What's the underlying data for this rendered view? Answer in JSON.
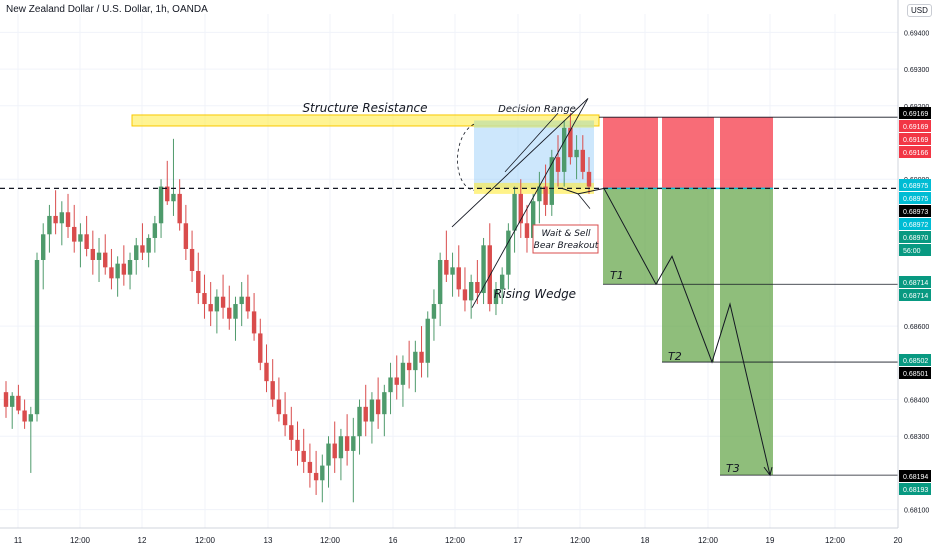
{
  "header": {
    "title": "New Zealand Dollar / U.S. Dollar, 1h, OANDA",
    "currency_button": "USD"
  },
  "chart_data": {
    "type": "candlestick",
    "symbol": "NZDUSD",
    "timeframe": "1h",
    "ylim": [
      0.6805,
      0.6945
    ],
    "y_ticks": [
      "0.69400",
      "0.69300",
      "0.69200",
      "0.69000",
      "0.68600",
      "0.68400",
      "0.68300",
      "0.68100"
    ],
    "x_ticks": [
      "11",
      "12:00",
      "12",
      "12:00",
      "13",
      "12:00",
      "16",
      "12:00",
      "17",
      "12:00",
      "18",
      "12:00",
      "19",
      "12:00",
      "20"
    ],
    "price_labels": [
      {
        "text": "0.69169",
        "color": "#000000"
      },
      {
        "text": "0.69169",
        "color": "#f23645"
      },
      {
        "text": "0.69169",
        "color": "#f23645"
      },
      {
        "text": "0.69166",
        "color": "#f23645"
      },
      {
        "text": "0.68975",
        "color": "#00bcd4"
      },
      {
        "text": "0.68975",
        "color": "#00bcd4"
      },
      {
        "text": "0.68973",
        "color": "#000000"
      },
      {
        "text": "0.68972",
        "color": "#00bcd4"
      },
      {
        "text": "0.68970",
        "color": "#089981"
      },
      {
        "text": "56:00",
        "color": "#089981"
      },
      {
        "text": "0.68714",
        "color": "#089981"
      },
      {
        "text": "0.68714",
        "color": "#089981"
      },
      {
        "text": "0.68502",
        "color": "#089981"
      },
      {
        "text": "0.68501",
        "color": "#000000"
      },
      {
        "text": "0.68194",
        "color": "#000000"
      },
      {
        "text": "0.68193",
        "color": "#089981"
      }
    ],
    "levels": {
      "entry": 0.68975,
      "stop": 0.69169,
      "t1": 0.68714,
      "t2": 0.68502,
      "t3": 0.68194,
      "structure_resistance": 0.6916
    },
    "annotations": {
      "structure_resistance": "Structure Resistance",
      "decision_range": "Decision Range",
      "rising_wedge": "Rising Wedge",
      "wait_sell": "Wait & Sell",
      "bear_breakout": "Bear Breakout",
      "t1": "T1",
      "t2": "T2",
      "t3": "T3"
    },
    "candles": [
      [
        0.6842,
        0.6845,
        0.6835,
        0.6838
      ],
      [
        0.6838,
        0.6842,
        0.6832,
        0.6841
      ],
      [
        0.6841,
        0.6844,
        0.6836,
        0.6837
      ],
      [
        0.6837,
        0.684,
        0.6832,
        0.6834
      ],
      [
        0.6834,
        0.6838,
        0.682,
        0.6836
      ],
      [
        0.6836,
        0.688,
        0.6834,
        0.6878
      ],
      [
        0.6878,
        0.6888,
        0.687,
        0.6885
      ],
      [
        0.6885,
        0.6893,
        0.688,
        0.689
      ],
      [
        0.689,
        0.6897,
        0.6885,
        0.6888
      ],
      [
        0.6888,
        0.6894,
        0.6882,
        0.6891
      ],
      [
        0.6891,
        0.6896,
        0.6884,
        0.6887
      ],
      [
        0.6887,
        0.6893,
        0.688,
        0.6883
      ],
      [
        0.6883,
        0.6888,
        0.6876,
        0.6885
      ],
      [
        0.6885,
        0.689,
        0.6879,
        0.6881
      ],
      [
        0.6881,
        0.6886,
        0.6874,
        0.6878
      ],
      [
        0.6878,
        0.6884,
        0.6872,
        0.688
      ],
      [
        0.688,
        0.6885,
        0.6874,
        0.6876
      ],
      [
        0.6876,
        0.6881,
        0.687,
        0.6873
      ],
      [
        0.6873,
        0.6879,
        0.6868,
        0.6877
      ],
      [
        0.6877,
        0.6882,
        0.6871,
        0.6874
      ],
      [
        0.6874,
        0.688,
        0.687,
        0.6878
      ],
      [
        0.6878,
        0.6884,
        0.6874,
        0.6882
      ],
      [
        0.6882,
        0.6888,
        0.6878,
        0.688
      ],
      [
        0.688,
        0.6885,
        0.6876,
        0.6884
      ],
      [
        0.6884,
        0.689,
        0.688,
        0.6888
      ],
      [
        0.6888,
        0.69,
        0.6884,
        0.6898
      ],
      [
        0.6898,
        0.6905,
        0.6893,
        0.6894
      ],
      [
        0.6894,
        0.6911,
        0.689,
        0.6896
      ],
      [
        0.6896,
        0.69,
        0.6886,
        0.6888
      ],
      [
        0.6888,
        0.6893,
        0.6878,
        0.6881
      ],
      [
        0.6881,
        0.6886,
        0.6872,
        0.6875
      ],
      [
        0.6875,
        0.688,
        0.6866,
        0.6869
      ],
      [
        0.6869,
        0.6874,
        0.6862,
        0.6866
      ],
      [
        0.6866,
        0.6872,
        0.686,
        0.6864
      ],
      [
        0.6864,
        0.687,
        0.6858,
        0.6868
      ],
      [
        0.6868,
        0.6874,
        0.6862,
        0.6865
      ],
      [
        0.6865,
        0.6871,
        0.6859,
        0.6862
      ],
      [
        0.6862,
        0.6868,
        0.6856,
        0.6866
      ],
      [
        0.6866,
        0.6872,
        0.686,
        0.6868
      ],
      [
        0.6868,
        0.6874,
        0.6862,
        0.6864
      ],
      [
        0.6864,
        0.6869,
        0.6856,
        0.6858
      ],
      [
        0.6858,
        0.6862,
        0.6848,
        0.685
      ],
      [
        0.685,
        0.6855,
        0.6842,
        0.6845
      ],
      [
        0.6845,
        0.6851,
        0.6838,
        0.684
      ],
      [
        0.684,
        0.6846,
        0.6834,
        0.6836
      ],
      [
        0.6836,
        0.6842,
        0.683,
        0.6833
      ],
      [
        0.6833,
        0.6838,
        0.6826,
        0.6829
      ],
      [
        0.6829,
        0.6834,
        0.6822,
        0.6826
      ],
      [
        0.6826,
        0.6832,
        0.682,
        0.6823
      ],
      [
        0.6823,
        0.6828,
        0.6816,
        0.682
      ],
      [
        0.682,
        0.6826,
        0.6814,
        0.6818
      ],
      [
        0.6818,
        0.6825,
        0.6812,
        0.6822
      ],
      [
        0.6822,
        0.683,
        0.6816,
        0.6828
      ],
      [
        0.6828,
        0.6834,
        0.682,
        0.6824
      ],
      [
        0.6824,
        0.6832,
        0.6818,
        0.683
      ],
      [
        0.683,
        0.6836,
        0.6822,
        0.6826
      ],
      [
        0.6826,
        0.6835,
        0.6812,
        0.683
      ],
      [
        0.683,
        0.684,
        0.6825,
        0.6838
      ],
      [
        0.6838,
        0.6844,
        0.683,
        0.6834
      ],
      [
        0.6834,
        0.6842,
        0.6828,
        0.684
      ],
      [
        0.684,
        0.6846,
        0.6832,
        0.6836
      ],
      [
        0.6836,
        0.6844,
        0.683,
        0.6842
      ],
      [
        0.6842,
        0.685,
        0.6836,
        0.6846
      ],
      [
        0.6846,
        0.6852,
        0.684,
        0.6844
      ],
      [
        0.6844,
        0.6852,
        0.6838,
        0.685
      ],
      [
        0.685,
        0.6856,
        0.6843,
        0.6848
      ],
      [
        0.6848,
        0.6856,
        0.6842,
        0.6853
      ],
      [
        0.6853,
        0.686,
        0.6846,
        0.685
      ],
      [
        0.685,
        0.6864,
        0.6846,
        0.6862
      ],
      [
        0.6862,
        0.687,
        0.6856,
        0.6866
      ],
      [
        0.6866,
        0.688,
        0.686,
        0.6878
      ],
      [
        0.6878,
        0.6886,
        0.6872,
        0.6874
      ],
      [
        0.6874,
        0.688,
        0.6868,
        0.6876
      ],
      [
        0.6876,
        0.6882,
        0.6868,
        0.687
      ],
      [
        0.687,
        0.6876,
        0.6864,
        0.6867
      ],
      [
        0.6867,
        0.6874,
        0.6862,
        0.6872
      ],
      [
        0.6872,
        0.6878,
        0.6866,
        0.6869
      ],
      [
        0.6869,
        0.6884,
        0.6866,
        0.6882
      ],
      [
        0.6882,
        0.6888,
        0.6864,
        0.6866
      ],
      [
        0.6866,
        0.6872,
        0.6863,
        0.687
      ],
      [
        0.687,
        0.6876,
        0.6866,
        0.6874
      ],
      [
        0.6874,
        0.6888,
        0.687,
        0.6886
      ],
      [
        0.6886,
        0.6898,
        0.688,
        0.6896
      ],
      [
        0.6896,
        0.69,
        0.6884,
        0.6888
      ],
      [
        0.6888,
        0.6893,
        0.688,
        0.6884
      ],
      [
        0.6884,
        0.6896,
        0.6882,
        0.6894
      ],
      [
        0.6894,
        0.6902,
        0.6888,
        0.6898
      ],
      [
        0.6898,
        0.6904,
        0.689,
        0.6893
      ],
      [
        0.6893,
        0.6908,
        0.689,
        0.6906
      ],
      [
        0.6906,
        0.6912,
        0.6898,
        0.6902
      ],
      [
        0.6902,
        0.6916,
        0.6898,
        0.6914
      ],
      [
        0.6914,
        0.6918,
        0.6904,
        0.6906
      ],
      [
        0.6906,
        0.6912,
        0.69,
        0.6908
      ],
      [
        0.6908,
        0.6912,
        0.69,
        0.6902
      ],
      [
        0.6902,
        0.6906,
        0.6896,
        0.6898
      ]
    ]
  }
}
